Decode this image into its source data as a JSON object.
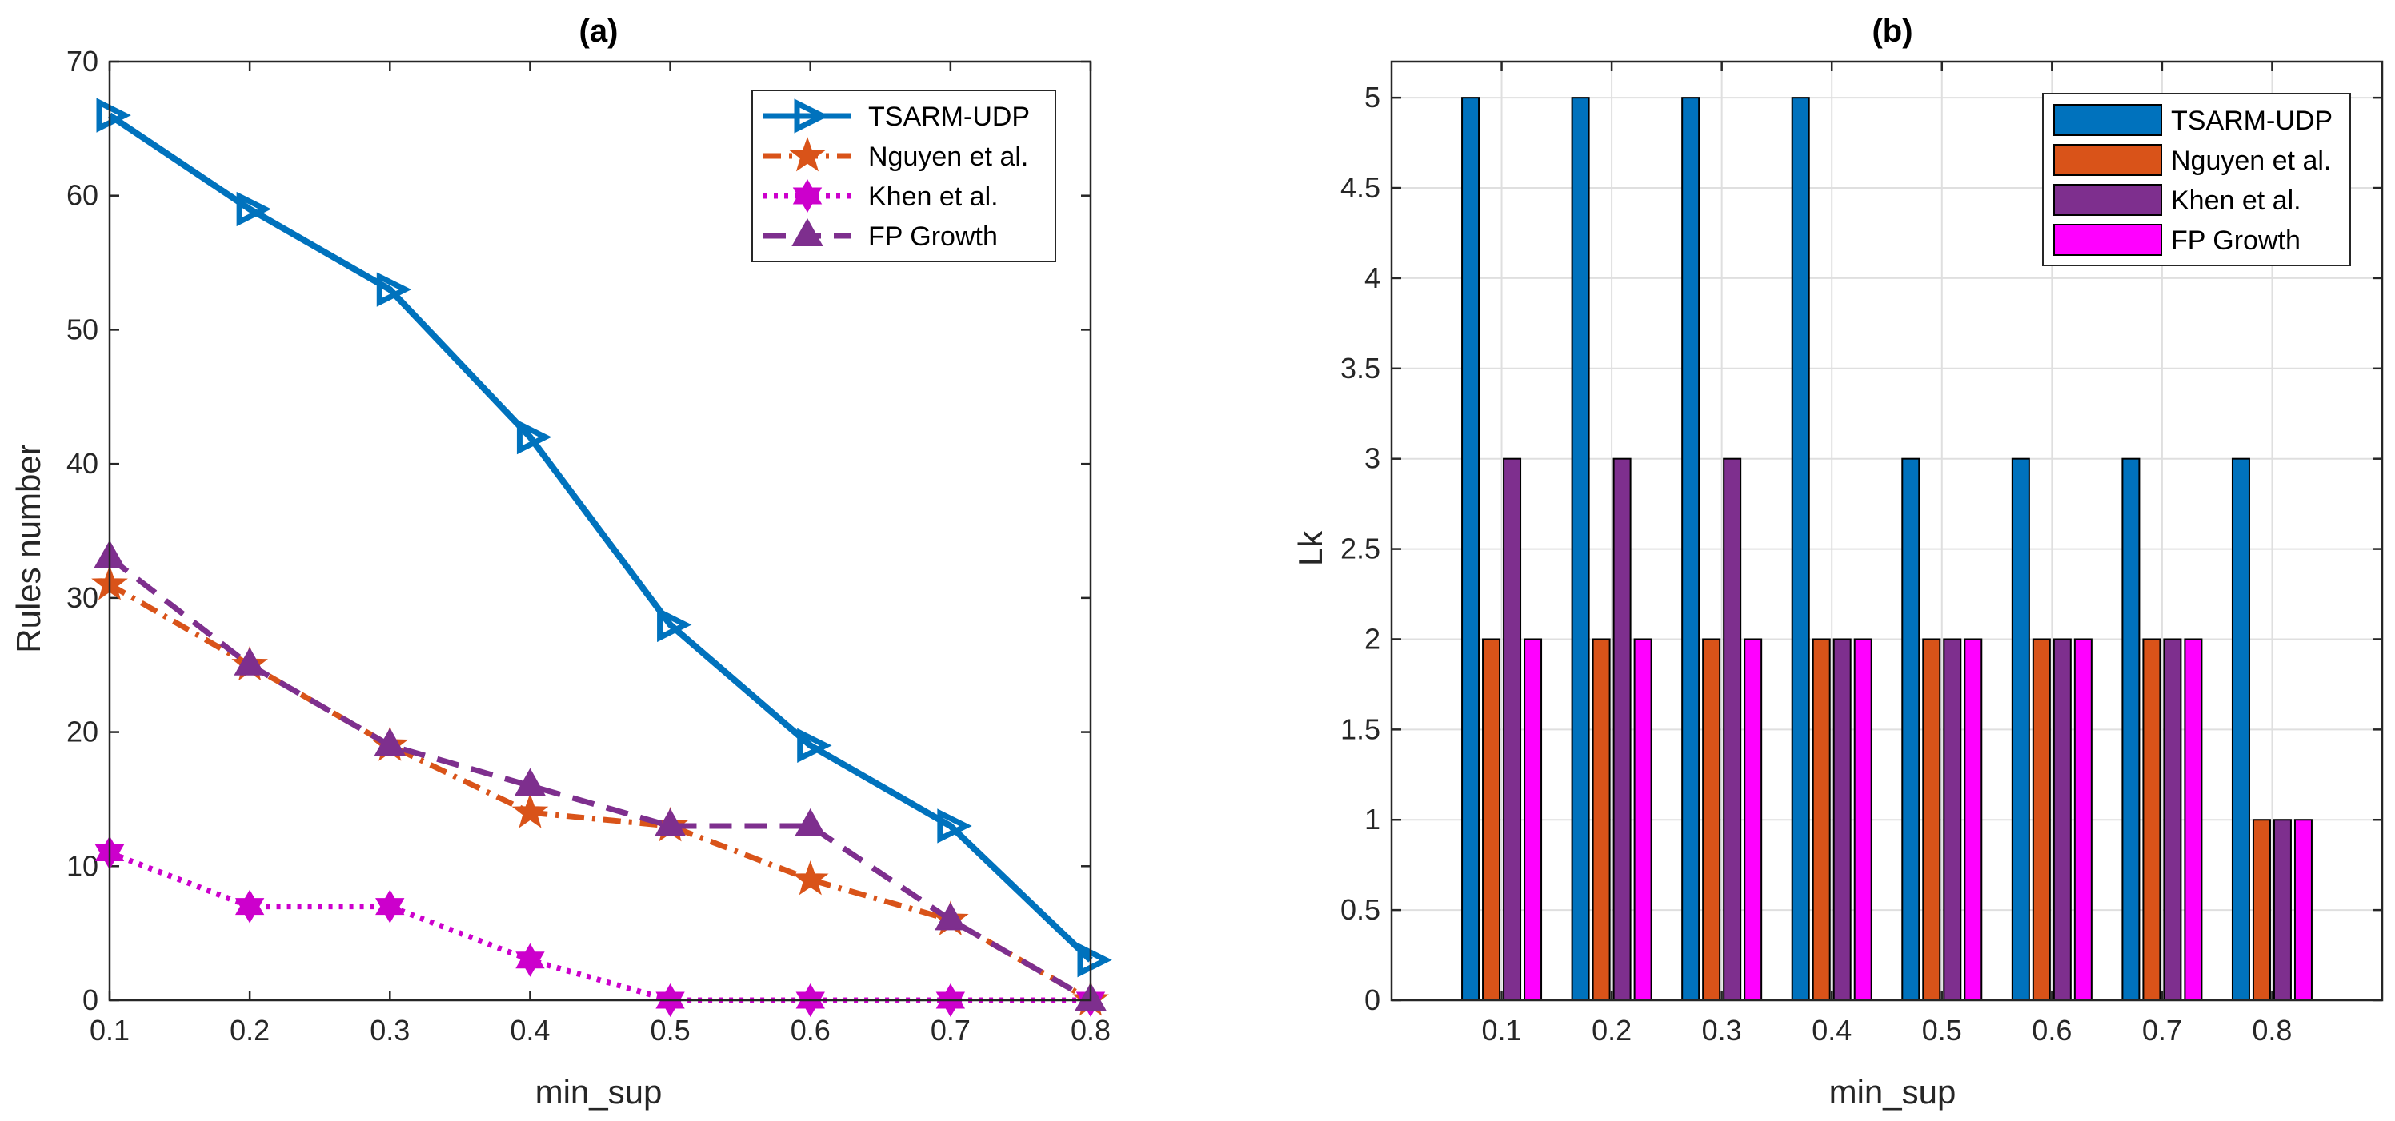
{
  "colors": {
    "TSARM-UDP": "#0072BD",
    "Nguyen et al.": "#D95319",
    "Khen et al.": "#CC00CC",
    "FP Growth": "#7E2F8E",
    "bar_khen": "#7E2F8E",
    "bar_fp": "#FF00FF"
  },
  "chart_data": [
    {
      "type": "line",
      "title": "(a)",
      "xlabel": "min_sup",
      "ylabel": "Rules number",
      "x": [
        0.1,
        0.2,
        0.3,
        0.4,
        0.5,
        0.6,
        0.7,
        0.8
      ],
      "x_tick_labels": [
        "0.1",
        "0.2",
        "0.3",
        "0.4",
        "0.5",
        "0.6",
        "0.7",
        "0.8"
      ],
      "xlim": [
        0.1,
        0.8
      ],
      "ylim": [
        0,
        70
      ],
      "y_ticks": [
        0,
        10,
        20,
        30,
        40,
        50,
        60,
        70
      ],
      "y_tick_labels": [
        "0",
        "10",
        "20",
        "30",
        "40",
        "50",
        "60",
        "70"
      ],
      "grid": false,
      "legend_position": "top-right",
      "series": [
        {
          "name": "TSARM-UDP",
          "values": [
            66,
            59,
            53,
            42,
            28,
            19,
            13,
            3
          ],
          "line": "solid",
          "marker": "triangle-right"
        },
        {
          "name": "Nguyen et al.",
          "values": [
            31,
            25,
            19,
            14,
            13,
            9,
            6,
            0
          ],
          "line": "dashdot",
          "marker": "pentagram"
        },
        {
          "name": "Khen et al.",
          "values": [
            11,
            7,
            7,
            3,
            0,
            0,
            0,
            0
          ],
          "line": "dotted",
          "marker": "hexagram"
        },
        {
          "name": "FP Growth",
          "values": [
            33,
            25,
            19,
            16,
            13,
            13,
            6,
            0
          ],
          "line": "dashed",
          "marker": "triangle-up"
        }
      ]
    },
    {
      "type": "bar",
      "title": "(b)",
      "xlabel": "min_sup",
      "ylabel": "Lk",
      "categories": [
        "0.1",
        "0.2",
        "0.3",
        "0.4",
        "0.5",
        "0.6",
        "0.7",
        "0.8"
      ],
      "ylim": [
        0,
        5.2
      ],
      "y_ticks": [
        0,
        0.5,
        1,
        1.5,
        2,
        2.5,
        3,
        3.5,
        4,
        4.5,
        5
      ],
      "y_tick_labels": [
        "0",
        "0.5",
        "1",
        "1.5",
        "2",
        "2.5",
        "3",
        "3.5",
        "4",
        "4.5",
        "5"
      ],
      "grid": true,
      "legend_position": "top-right",
      "series": [
        {
          "name": "TSARM-UDP",
          "values": [
            5,
            5,
            5,
            5,
            3,
            3,
            3,
            3
          ]
        },
        {
          "name": "Nguyen et al.",
          "values": [
            2,
            2,
            2,
            2,
            2,
            2,
            2,
            1
          ]
        },
        {
          "name": "Khen et al.",
          "values": [
            3,
            3,
            3,
            2,
            2,
            2,
            2,
            1
          ]
        },
        {
          "name": "FP Growth",
          "values": [
            2,
            2,
            2,
            2,
            2,
            2,
            2,
            1
          ]
        }
      ]
    }
  ]
}
